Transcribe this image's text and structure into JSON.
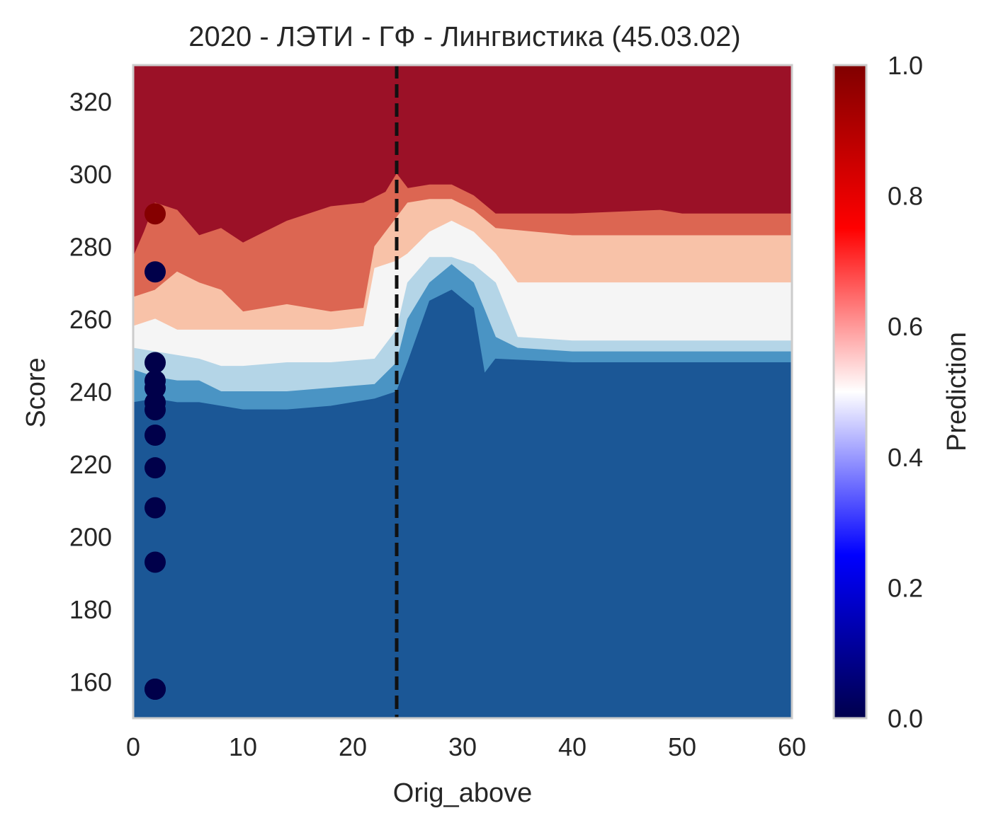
{
  "chart_data": {
    "type": "heatmap",
    "title": "2020 - ЛЭТИ - ГФ - Лингвистика (45.03.02)",
    "xlabel": "Orig_above",
    "ylabel": "Score",
    "xlim": [
      0,
      60
    ],
    "ylim": [
      150,
      330
    ],
    "xticks": [
      0,
      10,
      20,
      30,
      40,
      50,
      60
    ],
    "yticks": [
      160,
      180,
      200,
      220,
      240,
      260,
      280,
      300,
      320
    ],
    "threshold_line": {
      "x": 24,
      "style": "dashed",
      "color": "#111111"
    },
    "contour": {
      "levels": [
        0.0,
        0.15,
        0.3,
        0.45,
        0.55,
        0.7,
        0.85,
        1.0
      ],
      "colors": [
        "#1b5796",
        "#4a94c4",
        "#b4d5e7",
        "#f5f5f5",
        "#f8c2a8",
        "#dc6652",
        "#9b1127"
      ],
      "boundaries": [
        {
          "upper_level": 0.15,
          "points": [
            [
              0,
              237
            ],
            [
              2,
              238
            ],
            [
              4,
              237
            ],
            [
              6,
              237
            ],
            [
              8,
              236
            ],
            [
              10,
              235
            ],
            [
              14,
              235
            ],
            [
              18,
              236
            ],
            [
              22,
              238
            ],
            [
              24,
              240
            ],
            [
              25,
              248
            ],
            [
              27,
              265
            ],
            [
              29,
              268
            ],
            [
              31,
              263
            ],
            [
              32,
              245
            ],
            [
              33,
              249
            ],
            [
              40,
              248
            ],
            [
              60,
              248
            ]
          ]
        },
        {
          "upper_level": 0.3,
          "points": [
            [
              0,
              246
            ],
            [
              2,
              244
            ],
            [
              4,
              243
            ],
            [
              6,
              243
            ],
            [
              8,
              240
            ],
            [
              10,
              240
            ],
            [
              14,
              240
            ],
            [
              18,
              241
            ],
            [
              22,
              242
            ],
            [
              24,
              248
            ],
            [
              25,
              260
            ],
            [
              27,
              270
            ],
            [
              29,
              275
            ],
            [
              31,
              270
            ],
            [
              33,
              255
            ],
            [
              35,
              252
            ],
            [
              40,
              251
            ],
            [
              60,
              251
            ]
          ]
        },
        {
          "upper_level": 0.45,
          "points": [
            [
              0,
              252
            ],
            [
              2,
              251
            ],
            [
              4,
              250
            ],
            [
              6,
              249
            ],
            [
              8,
              247
            ],
            [
              10,
              247
            ],
            [
              14,
              248
            ],
            [
              18,
              248
            ],
            [
              22,
              249
            ],
            [
              24,
              257
            ],
            [
              25,
              270
            ],
            [
              27,
              277
            ],
            [
              29,
              277
            ],
            [
              31,
              275
            ],
            [
              33,
              270
            ],
            [
              35,
              255
            ],
            [
              40,
              254
            ],
            [
              60,
              254
            ]
          ]
        },
        {
          "upper_level": 0.55,
          "points": [
            [
              0,
              258
            ],
            [
              2,
              260
            ],
            [
              4,
              257
            ],
            [
              6,
              257
            ],
            [
              8,
              257
            ],
            [
              10,
              257
            ],
            [
              14,
              257
            ],
            [
              18,
              257
            ],
            [
              21,
              258
            ],
            [
              22,
              274
            ],
            [
              24,
              276
            ],
            [
              25,
              278
            ],
            [
              27,
              284
            ],
            [
              29,
              287
            ],
            [
              31,
              284
            ],
            [
              33,
              278
            ],
            [
              35,
              270
            ],
            [
              40,
              270
            ],
            [
              60,
              270
            ]
          ]
        },
        {
          "upper_level": 0.7,
          "points": [
            [
              0,
              266
            ],
            [
              2,
              268
            ],
            [
              4,
              273
            ],
            [
              6,
              270
            ],
            [
              8,
              268
            ],
            [
              10,
              262
            ],
            [
              14,
              264
            ],
            [
              18,
              262
            ],
            [
              21,
              263
            ],
            [
              22,
              280
            ],
            [
              24,
              288
            ],
            [
              25,
              292
            ],
            [
              27,
              293
            ],
            [
              29,
              293
            ],
            [
              31,
              290
            ],
            [
              33,
              285
            ],
            [
              40,
              283
            ],
            [
              60,
              283
            ]
          ]
        },
        {
          "upper_level": 0.85,
          "points": [
            [
              0,
              277
            ],
            [
              1,
              284
            ],
            [
              2,
              292
            ],
            [
              4,
              290
            ],
            [
              6,
              283
            ],
            [
              8,
              285
            ],
            [
              10,
              281
            ],
            [
              12,
              284
            ],
            [
              14,
              287
            ],
            [
              18,
              291
            ],
            [
              21,
              292
            ],
            [
              23,
              295
            ],
            [
              24,
              300
            ],
            [
              25,
              296
            ],
            [
              27,
              297
            ],
            [
              29,
              297
            ],
            [
              31,
              294
            ],
            [
              33,
              289
            ],
            [
              40,
              289
            ],
            [
              48,
              290
            ],
            [
              50,
              289
            ],
            [
              60,
              289
            ]
          ]
        }
      ]
    },
    "colorbar": {
      "label": "Prediction",
      "range": [
        0.0,
        1.0
      ],
      "ticks": [
        "0.0",
        "0.2",
        "0.4",
        "0.6",
        "0.8",
        "1.0"
      ],
      "colormap": "seismic",
      "color_stops": [
        "#00004c",
        "#0000ff",
        "#ffffff",
        "#ff0000",
        "#800000"
      ]
    },
    "scatter": {
      "x": [
        2,
        2,
        2,
        2,
        2,
        2,
        2,
        2,
        2,
        2,
        2,
        2,
        2
      ],
      "y": [
        289,
        273,
        248,
        243,
        241,
        237,
        235,
        228,
        219,
        208,
        193,
        158,
        158
      ],
      "prediction": [
        1.0,
        0,
        0,
        0,
        0,
        0,
        0,
        0,
        0,
        0,
        0,
        0,
        0
      ],
      "colors": [
        "#850000",
        "#00004a",
        "#00004a",
        "#00004a",
        "#00004a",
        "#00004a",
        "#00004a",
        "#00004a",
        "#00004a",
        "#00004a",
        "#00004a",
        "#00004a",
        "#00004a"
      ]
    }
  }
}
